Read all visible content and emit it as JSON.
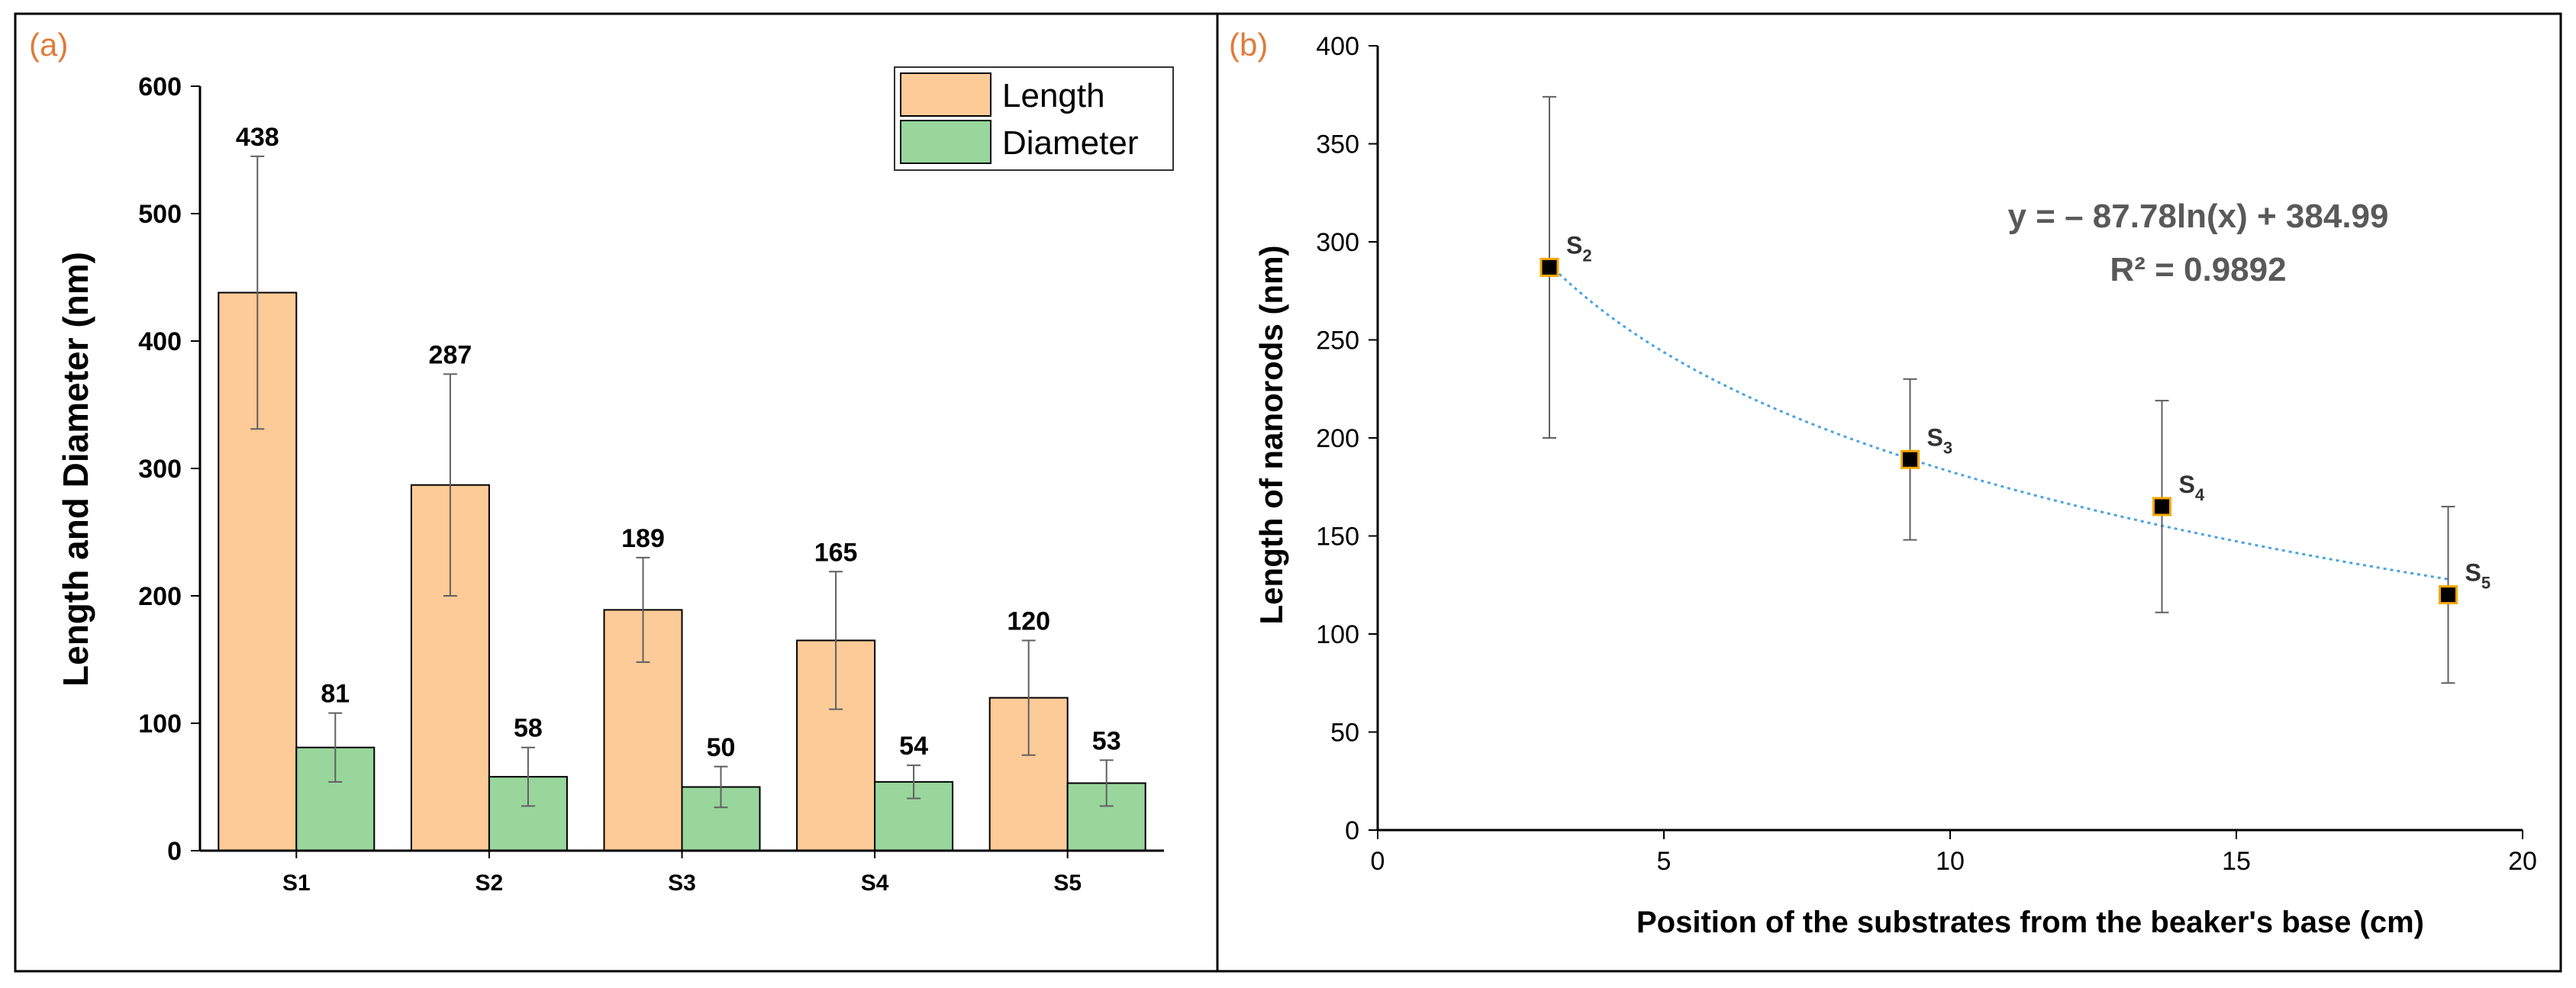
{
  "colors": {
    "length": "#FDCB97",
    "diameter": "#98D69C",
    "marker_fill": "#000000",
    "marker_edge": "#F5A700",
    "fit": "#4BA3E0",
    "panel_label": "#E07B39",
    "equation": "#595959",
    "errorbar": "#606060"
  },
  "chart_data": [
    {
      "type": "bar",
      "panel_label": "(a)",
      "title": "",
      "xlabel": "",
      "ylabel": "Length and Diameter (nm)",
      "categories": [
        "S1",
        "S2",
        "S3",
        "S4",
        "S5"
      ],
      "ylim": [
        0,
        600
      ],
      "yticks": [
        "0",
        "100",
        "200",
        "300",
        "400",
        "500",
        "600"
      ],
      "legend": "top-right",
      "grid": false,
      "series": [
        {
          "name": "Length",
          "values": [
            438,
            287,
            189,
            165,
            120
          ],
          "errors": [
            107,
            87,
            41,
            54,
            45
          ],
          "labels": [
            "438",
            "287",
            "189",
            "165",
            "120"
          ]
        },
        {
          "name": "Diameter",
          "values": [
            81,
            58,
            50,
            54,
            53
          ],
          "errors": [
            27,
            23,
            16,
            13,
            18
          ],
          "labels": [
            "81",
            "58",
            "50",
            "54",
            "53"
          ]
        }
      ]
    },
    {
      "type": "scatter",
      "panel_label": "(b)",
      "title": "",
      "xlabel": "Position of the substrates from the beaker's base (cm)",
      "ylabel": "Length of nanorods (nm)",
      "xlim": [
        0,
        20
      ],
      "ylim": [
        0,
        400
      ],
      "xticks": [
        "0",
        "5",
        "10",
        "15",
        "20"
      ],
      "yticks": [
        "0",
        "50",
        "100",
        "150",
        "200",
        "250",
        "300",
        "350",
        "400"
      ],
      "grid": false,
      "points": [
        {
          "label": "S",
          "sub": "2",
          "x": 3.0,
          "y": 287,
          "err": 87
        },
        {
          "label": "S",
          "sub": "3",
          "x": 9.3,
          "y": 189,
          "err": 41
        },
        {
          "label": "S",
          "sub": "4",
          "x": 13.7,
          "y": 165,
          "err": 54
        },
        {
          "label": "S",
          "sub": "5",
          "x": 18.7,
          "y": 120,
          "err": 45
        }
      ],
      "fit": {
        "type": "log",
        "a": -87.78,
        "b": 384.99,
        "x_range": [
          3.0,
          18.7
        ]
      },
      "annotation": {
        "equation": "y = – 87.78ln(x) + 384.99",
        "r2": "R² = 0.9892"
      }
    }
  ]
}
